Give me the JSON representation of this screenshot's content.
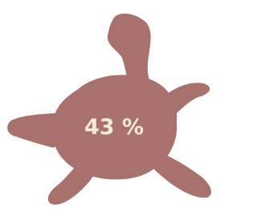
{
  "label": "43 %"
}
